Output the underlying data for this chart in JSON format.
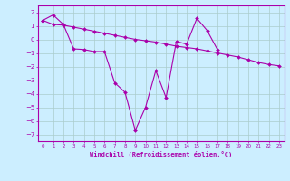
{
  "x_values": [
    0,
    1,
    2,
    3,
    4,
    5,
    6,
    7,
    8,
    9,
    10,
    11,
    12,
    13,
    14,
    15,
    16,
    17,
    18,
    19,
    20,
    21,
    22,
    23
  ],
  "line1_y": [
    1.4,
    1.8,
    1.1,
    -0.7,
    -0.75,
    -0.9,
    -0.9,
    -3.2,
    -3.9,
    -6.7,
    -5.0,
    -2.3,
    -4.3,
    -0.15,
    -0.35,
    1.55,
    0.65,
    -0.75,
    null,
    null,
    null,
    null,
    null,
    null
  ],
  "line2_y": [
    1.4,
    1.1,
    1.05,
    0.9,
    0.75,
    0.6,
    0.45,
    0.3,
    0.15,
    0.0,
    -0.1,
    -0.2,
    -0.35,
    -0.5,
    -0.6,
    -0.7,
    -0.85,
    -1.0,
    -1.15,
    -1.3,
    -1.5,
    -1.7,
    -1.85,
    -1.95
  ],
  "bg_color": "#cceeff",
  "line_color": "#aa00aa",
  "grid_color": "#aacccc",
  "xlabel": "Windchill (Refroidissement éolien,°C)",
  "ylim": [
    -7.5,
    2.5
  ],
  "xlim": [
    -0.5,
    23.5
  ],
  "yticks": [
    2,
    1,
    0,
    -1,
    -2,
    -3,
    -4,
    -5,
    -6,
    -7
  ],
  "xticks": [
    0,
    1,
    2,
    3,
    4,
    5,
    6,
    7,
    8,
    9,
    10,
    11,
    12,
    13,
    14,
    15,
    16,
    17,
    18,
    19,
    20,
    21,
    22,
    23
  ],
  "figsize": [
    3.2,
    2.0
  ],
  "dpi": 100
}
